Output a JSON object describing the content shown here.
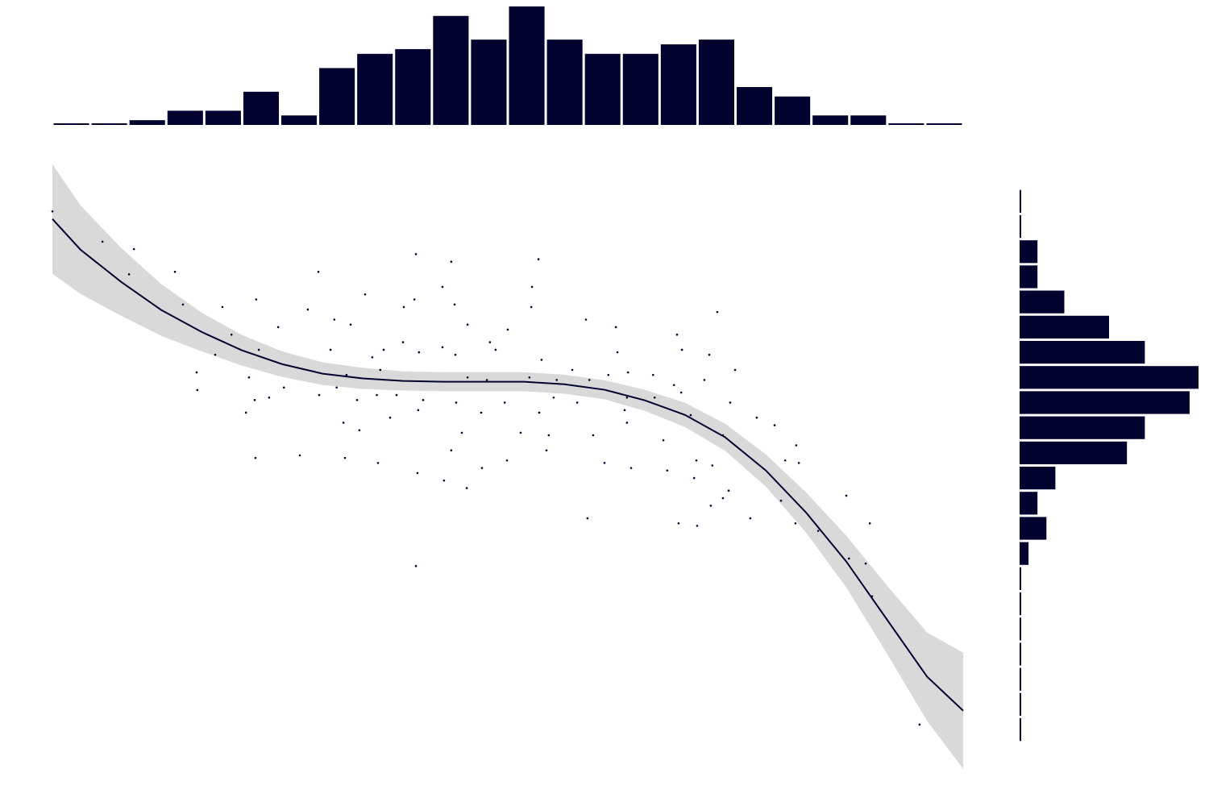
{
  "chart_data": [
    {
      "type": "scatter",
      "color": "#02022e",
      "band_color": "#d9d9d9",
      "xlim": [
        0,
        24
      ],
      "ylim": [
        -1,
        23
      ],
      "x": [
        0,
        1.32,
        2.15,
        2.02,
        3.23,
        3.44,
        4.48,
        4.72,
        5.44,
        4.29,
        3.8,
        3.82,
        5.18,
        5.37,
        5.95,
        6.73,
        7.01,
        8.24,
        9.58,
        10.51,
        12.81,
        10.28,
        12.64,
        9.54,
        10.6,
        9.26,
        12.62,
        17.52,
        14.06,
        14.85,
        16.46,
        7.43,
        7.86,
        10.94,
        12.0,
        11.53,
        7.33,
        9.24,
        10.28,
        10.62,
        9.66,
        11.68,
        14.89,
        16.59,
        17.31,
        8.43,
        8.73,
        12.89,
        13.7,
        14.65,
        15.17,
        15.83,
        17.99,
        7.75,
        8.64,
        10.94,
        11.45,
        12.57,
        13.29,
        14.15,
        16.38,
        17.18,
        6.1,
        7.03,
        7.49,
        8.55,
        9.07,
        9.77,
        10.64,
        11.92,
        13.21,
        15.14,
        15.87,
        16.57,
        17.86,
        5.33,
        5.1,
        5.71,
        8.03,
        8.9,
        9.64,
        11.3,
        12.83,
        13.83,
        15.08,
        16.82,
        7.67,
        8.09,
        10.79,
        12.34,
        13.08,
        14.25,
        15.14,
        16.1,
        17.67,
        18.56,
        19.03,
        19.6,
        5.35,
        6.52,
        7.71,
        8.58,
        10.51,
        11.32,
        11.98,
        13.02,
        14.55,
        15.25,
        16.2,
        16.97,
        17.39,
        19.31,
        19.67,
        9.62,
        10.32,
        10.92,
        16.91,
        17.82,
        17.67,
        17.35,
        19.2,
        20.92,
        14.1,
        16.5,
        16.99,
        18.39,
        19.58,
        20.18,
        21.54,
        9.58,
        20.99,
        21.43,
        21.6,
        22.85
      ],
      "y": [
        21.1,
        19.9,
        19.6,
        18.6,
        18.7,
        17.4,
        17.3,
        16.2,
        15.6,
        15.4,
        14.7,
        14.0,
        14.5,
        17.6,
        16.5,
        17.2,
        18.7,
        17.8,
        19.4,
        19.1,
        19.2,
        18.1,
        18.1,
        17.6,
        17.4,
        17.3,
        17.3,
        17.1,
        16.8,
        16.5,
        16.2,
        16.8,
        16.6,
        16.6,
        16.4,
        15.9,
        15.6,
        15.9,
        15.7,
        15.4,
        15.5,
        15.6,
        15.5,
        15.6,
        15.4,
        15.3,
        15.6,
        15.2,
        14.8,
        14.6,
        14.7,
        14.6,
        14.8,
        14.6,
        14.8,
        14.5,
        14.4,
        14.5,
        14.4,
        14.4,
        14.2,
        14.4,
        14.1,
        13.8,
        14.1,
        13.8,
        13.8,
        13.6,
        13.5,
        13.5,
        13.7,
        13.7,
        13.7,
        13.9,
        13.5,
        13.6,
        13.1,
        13.7,
        13.6,
        12.9,
        13.2,
        13.1,
        13.1,
        13.5,
        13.2,
        13.0,
        12.7,
        12.4,
        12.3,
        12.3,
        12.2,
        12.2,
        12.7,
        12.0,
        12.2,
        12.9,
        12.6,
        11.8,
        11.3,
        11.4,
        11.3,
        11.1,
        11.6,
        10.9,
        11.2,
        11.6,
        11.1,
        10.9,
        10.8,
        11.2,
        11.0,
        11.2,
        11.1,
        10.7,
        10.4,
        10.1,
        10.5,
        10.0,
        9.7,
        9.4,
        9.6,
        9.8,
        8.9,
        8.7,
        8.6,
        8.9,
        8.7,
        8.4,
        8.7,
        7.0,
        7.3,
        7.1,
        5.8,
        0.7
      ],
      "smooth": {
        "color": "#02022e",
        "x": [
          0,
          0.74,
          1.81,
          2.87,
          3.93,
          4.99,
          6.05,
          7.12,
          8.18,
          9.24,
          10.3,
          11.36,
          12.43,
          13.49,
          14.55,
          15.61,
          16.67,
          17.73,
          18.8,
          19.86,
          20.92,
          21.98,
          23.05,
          24
        ],
        "y": [
          20.8,
          19.58,
          18.3,
          17.18,
          16.31,
          15.58,
          15.03,
          14.65,
          14.46,
          14.36,
          14.33,
          14.33,
          14.33,
          14.23,
          14.01,
          13.59,
          13.01,
          12.12,
          10.8,
          9.13,
          7.18,
          4.9,
          2.6,
          1.25
        ],
        "ci": [
          2.18,
          1.76,
          1.35,
          1.03,
          0.77,
          0.61,
          0.51,
          0.45,
          0.42,
          0.38,
          0.38,
          0.38,
          0.38,
          0.38,
          0.38,
          0.42,
          0.48,
          0.54,
          0.64,
          0.8,
          1.03,
          1.35,
          1.76,
          2.31
        ]
      }
    },
    {
      "type": "histogram",
      "orientation": "vertical",
      "color": "#02022e",
      "bins": [
        0,
        1,
        2,
        3,
        4,
        5,
        6,
        7,
        8,
        9,
        10,
        11,
        12,
        13,
        14,
        15,
        16,
        17,
        18,
        19,
        20,
        21,
        22,
        23,
        24
      ],
      "values": [
        0,
        0,
        1,
        3,
        3,
        7,
        2,
        12,
        15,
        16,
        23,
        18,
        25,
        18,
        15,
        15,
        17,
        18,
        8,
        6,
        2,
        2,
        0,
        0
      ],
      "ylim": [
        0,
        25
      ]
    },
    {
      "type": "histogram",
      "orientation": "horizontal",
      "color": "#02022e",
      "bins": [
        0,
        1,
        2,
        3,
        4,
        5,
        6,
        7,
        8,
        9,
        10,
        11,
        12,
        13,
        14,
        15,
        16,
        17,
        18,
        19,
        20,
        21,
        22
      ],
      "values": [
        0,
        0,
        0,
        0,
        0,
        0,
        0,
        1,
        3,
        2,
        4,
        12,
        14,
        19,
        20,
        14,
        10,
        5,
        2,
        2,
        0,
        0
      ],
      "xlim": [
        0,
        20
      ]
    }
  ]
}
